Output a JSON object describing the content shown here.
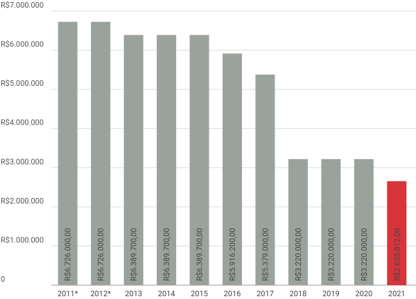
{
  "chart_data": {
    "type": "bar",
    "categories": [
      "2011*",
      "2012*",
      "2013",
      "2014",
      "2015",
      "2016",
      "2017",
      "2018",
      "2019",
      "2020",
      "2021"
    ],
    "values": [
      6726000,
      6726000,
      6389700,
      6389700,
      6389700,
      5916200,
      5379000,
      3220000,
      3220000,
      3220000,
      2655812
    ],
    "value_labels": [
      "R$6.726.000,00",
      "R$6.726.000,00",
      "R$6.389.700,00",
      "R$6.389.700,00",
      "R$6.389.700,00",
      "R$5.916.200,00",
      "R$5.379.000,00",
      "R$3.220.000,00",
      "R$3.220.000,00",
      "R$3.220.000,00",
      "R$2.655.812,00"
    ],
    "colors": [
      "#9aa39b",
      "#9aa39b",
      "#9aa39b",
      "#9aa39b",
      "#9aa39b",
      "#9aa39b",
      "#9aa39b",
      "#9aa39b",
      "#9aa39b",
      "#9aa39b",
      "#d9343b"
    ],
    "value_label_colors": [
      "#333333",
      "#333333",
      "#333333",
      "#333333",
      "#333333",
      "#333333",
      "#333333",
      "#333333",
      "#333333",
      "#333333",
      "#ffffff"
    ],
    "ylim": [
      0,
      7000000
    ],
    "yticks": [
      0,
      {
        "value": 1000000,
        "label": "R$1.000.000"
      },
      {
        "value": 2000000,
        "label": "R$2.000.000"
      },
      {
        "value": 3000000,
        "label": "R$3.000.000"
      },
      {
        "value": 4000000,
        "label": "R$4.000.000"
      },
      {
        "value": 5000000,
        "label": "R$5.000.000"
      },
      {
        "value": 6000000,
        "label": "R$6.000.000"
      },
      {
        "value": 7000000,
        "label": "R$7.000.000"
      }
    ],
    "grid": true
  }
}
